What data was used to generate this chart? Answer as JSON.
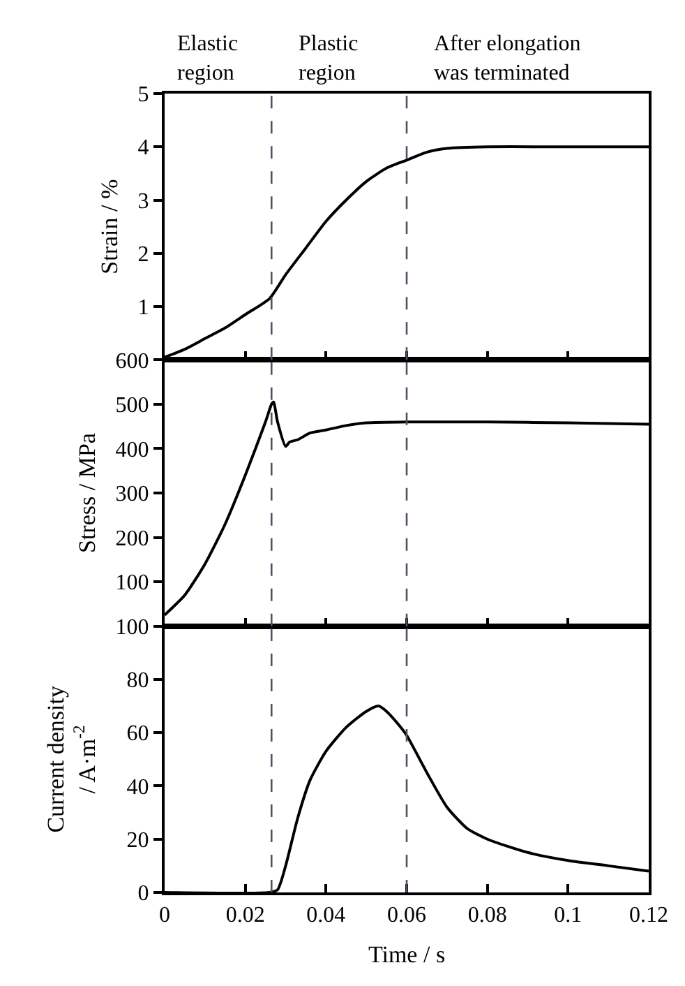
{
  "chart_data": [
    {
      "type": "line",
      "ylabel": "Strain / %",
      "annotations": [
        "Elastic\nregion",
        "Plastic\nregion",
        "After elongation\nwas terminated"
      ],
      "x": [
        0,
        0.005,
        0.01,
        0.015,
        0.02,
        0.026,
        0.03,
        0.035,
        0.04,
        0.045,
        0.05,
        0.055,
        0.06,
        0.065,
        0.07,
        0.08,
        0.1,
        0.12
      ],
      "series": [
        {
          "color": "#000000",
          "values": [
            0.05,
            0.2,
            0.4,
            0.6,
            0.85,
            1.15,
            1.6,
            2.1,
            2.6,
            3.0,
            3.35,
            3.6,
            3.75,
            3.9,
            3.97,
            4.0,
            4.0,
            4.0
          ]
        }
      ],
      "xlim": [
        0,
        0.12
      ],
      "xticks": [
        0,
        0.02,
        0.04,
        0.06,
        0.08,
        0.1,
        0.12
      ],
      "ylim": [
        0,
        5
      ],
      "yticks": [
        1,
        2,
        3,
        4,
        5
      ],
      "tick_labels": "y",
      "grid": false,
      "marker": "none",
      "line_style": "solid",
      "ref_lines": [
        {
          "axis": "x",
          "value": 0.0265,
          "label": null,
          "color": "#4a5563",
          "line_style": "dashed"
        },
        {
          "axis": "x",
          "value": 0.06,
          "label": null,
          "color": "#4a5563",
          "line_style": "dashed"
        }
      ]
    },
    {
      "type": "line",
      "ylabel": "Stress / MPa",
      "x": [
        0,
        0.005,
        0.01,
        0.015,
        0.02,
        0.025,
        0.0265,
        0.027,
        0.028,
        0.03,
        0.031,
        0.033,
        0.036,
        0.04,
        0.045,
        0.05,
        0.06,
        0.08,
        0.1,
        0.12
      ],
      "series": [
        {
          "color": "#000000",
          "values": [
            25,
            70,
            140,
            230,
            340,
            460,
            500,
            505,
            460,
            405,
            415,
            420,
            435,
            442,
            452,
            458,
            460,
            460,
            458,
            455
          ]
        }
      ],
      "xlim": [
        0,
        0.12
      ],
      "xticks": [
        0,
        0.02,
        0.04,
        0.06,
        0.08,
        0.1,
        0.12
      ],
      "ylim": [
        0,
        600
      ],
      "yticks": [
        100,
        200,
        300,
        400,
        500,
        600
      ],
      "tick_labels": "y",
      "grid": false,
      "marker": "none",
      "line_style": "solid",
      "ref_lines": [
        {
          "axis": "x",
          "value": 0.0265,
          "label": null,
          "color": "#4a5563",
          "line_style": "dashed"
        },
        {
          "axis": "x",
          "value": 0.06,
          "label": null,
          "color": "#4a5563",
          "line_style": "dashed"
        }
      ]
    },
    {
      "type": "line",
      "xlabel": "Time / s",
      "ylabel": "Current density\n/ A·m$^{-2}$",
      "x": [
        0,
        0.026,
        0.028,
        0.03,
        0.033,
        0.036,
        0.04,
        0.045,
        0.05,
        0.053,
        0.055,
        0.058,
        0.06,
        0.065,
        0.07,
        0.075,
        0.08,
        0.09,
        0.1,
        0.11,
        0.12
      ],
      "series": [
        {
          "color": "#000000",
          "values": [
            0,
            0,
            1,
            10,
            28,
            42,
            53,
            62,
            68,
            70,
            68,
            63,
            59,
            45,
            32,
            24,
            20,
            15,
            12,
            10,
            8
          ]
        }
      ],
      "xlim": [
        0,
        0.12
      ],
      "xticks": [
        0,
        0.02,
        0.04,
        0.06,
        0.08,
        0.1,
        0.12
      ],
      "ylim": [
        0,
        100
      ],
      "yticks": [
        0,
        20,
        40,
        60,
        80,
        100
      ],
      "grid": false,
      "marker": "none",
      "line_style": "solid",
      "ref_lines": [
        {
          "axis": "x",
          "value": 0.0265,
          "label": null,
          "color": "#4a5563",
          "line_style": "dashed"
        },
        {
          "axis": "x",
          "value": 0.06,
          "label": null,
          "color": "#4a5563",
          "line_style": "dashed"
        }
      ]
    }
  ]
}
